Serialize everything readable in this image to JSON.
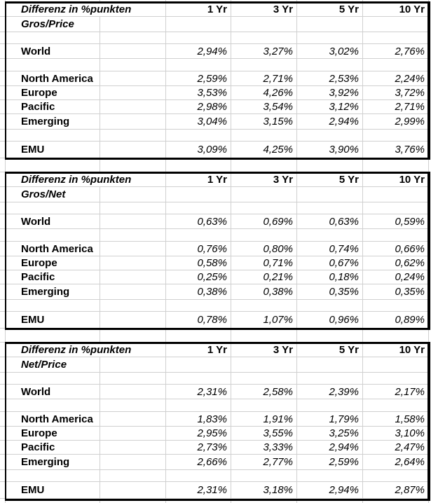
{
  "sheet": {
    "columns": [
      "1 Yr",
      "3 Yr",
      "5 Yr",
      "10 Yr"
    ],
    "sections": [
      {
        "title": "Differenz in %punkten",
        "subtitle": "Gros/Price",
        "rows": [
          {
            "label": "World",
            "values": [
              "2,94%",
              "3,27%",
              "3,02%",
              "2,76%"
            ]
          },
          {
            "label": "North America",
            "values": [
              "2,59%",
              "2,71%",
              "2,53%",
              "2,24%"
            ]
          },
          {
            "label": "Europe",
            "values": [
              "3,53%",
              "4,26%",
              "3,92%",
              "3,72%"
            ]
          },
          {
            "label": "Pacific",
            "values": [
              "2,98%",
              "3,54%",
              "3,12%",
              "2,71%"
            ]
          },
          {
            "label": "Emerging",
            "values": [
              "3,04%",
              "3,15%",
              "2,94%",
              "2,99%"
            ]
          },
          {
            "label": "EMU",
            "values": [
              "3,09%",
              "4,25%",
              "3,90%",
              "3,76%"
            ]
          }
        ]
      },
      {
        "title": "Differenz in %punkten",
        "subtitle": "Gros/Net",
        "rows": [
          {
            "label": "World",
            "values": [
              "0,63%",
              "0,69%",
              "0,63%",
              "0,59%"
            ]
          },
          {
            "label": "North America",
            "values": [
              "0,76%",
              "0,80%",
              "0,74%",
              "0,66%"
            ]
          },
          {
            "label": "Europe",
            "values": [
              "0,58%",
              "0,71%",
              "0,67%",
              "0,62%"
            ]
          },
          {
            "label": "Pacific",
            "values": [
              "0,25%",
              "0,21%",
              "0,18%",
              "0,24%"
            ]
          },
          {
            "label": "Emerging",
            "values": [
              "0,38%",
              "0,38%",
              "0,35%",
              "0,35%"
            ]
          },
          {
            "label": "EMU",
            "values": [
              "0,78%",
              "1,07%",
              "0,96%",
              "0,89%"
            ]
          }
        ]
      },
      {
        "title": "Differenz in %punkten",
        "subtitle": "Net/Price",
        "rows": [
          {
            "label": "World",
            "values": [
              "2,31%",
              "2,58%",
              "2,39%",
              "2,17%"
            ]
          },
          {
            "label": "North America",
            "values": [
              "1,83%",
              "1,91%",
              "1,79%",
              "1,58%"
            ]
          },
          {
            "label": "Europe",
            "values": [
              "2,95%",
              "3,55%",
              "3,25%",
              "3,10%"
            ]
          },
          {
            "label": "Pacific",
            "values": [
              "2,73%",
              "3,33%",
              "2,94%",
              "2,47%"
            ]
          },
          {
            "label": "Emerging",
            "values": [
              "2,66%",
              "2,77%",
              "2,59%",
              "2,64%"
            ]
          },
          {
            "label": "EMU",
            "values": [
              "2,31%",
              "3,18%",
              "2,94%",
              "2,87%"
            ]
          }
        ]
      }
    ]
  },
  "colors": {
    "background": "#ffffff",
    "gridline": "#d0d0d0",
    "section_border": "#000000",
    "text": "#000000"
  }
}
